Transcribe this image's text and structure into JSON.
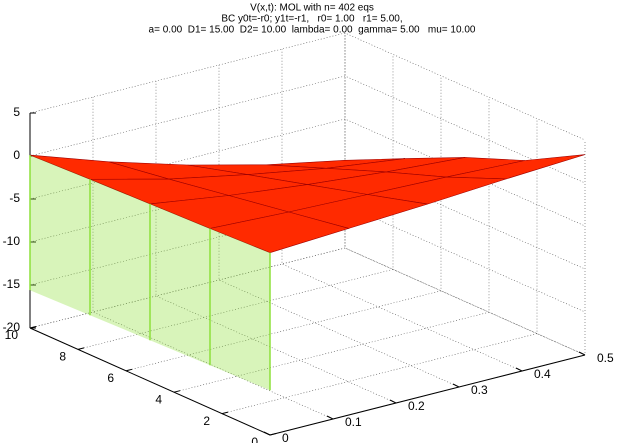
{
  "chart_data": {
    "type": "surface3d",
    "title": [
      "V(x,t): MOL with n= 402 eqs",
      "BC y0t=-r0; y1t=-r1,   r0= 1.00   r1= 5.00,",
      "a= 0.00  D1= 15.00  D2= 10.00  lambda= 0.00  gamma= 5.00   mu= 10.00"
    ],
    "x": [
      0,
      0.125,
      0.25,
      0.375,
      0.5
    ],
    "t": [
      0,
      2.5,
      5,
      7.5,
      10
    ],
    "z": [
      [
        1.2,
        1.7,
        2.2,
        2.8,
        3.3
      ],
      [
        0.9,
        0.5,
        0.2,
        -0.1,
        -0.5
      ],
      [
        0.65,
        -0.7,
        -1.75,
        -2.6,
        -3.25
      ],
      [
        0.4,
        -1.9,
        -3.7,
        -5.3,
        -6.5
      ],
      [
        0.1,
        -3,
        -5.7,
        -8,
        -9.8
      ]
    ],
    "x0_lower": [
      -14.8,
      -15,
      -15.2,
      -15.4,
      -15.6
    ],
    "surface_color": "#ff2a00",
    "edge_color": "#a00000",
    "curtain_color": "#8ee03a",
    "xlim": [
      0,
      0.5
    ],
    "tlim": [
      0,
      10
    ],
    "zlim": [
      -20,
      5
    ],
    "xticks": [
      0,
      0.1,
      0.2,
      0.3,
      0.4,
      0.5
    ],
    "tticks": [
      0,
      2,
      4,
      6,
      8,
      10
    ],
    "zticks": [
      -20,
      -15,
      -10,
      -5,
      0,
      5
    ],
    "grid": true
  }
}
